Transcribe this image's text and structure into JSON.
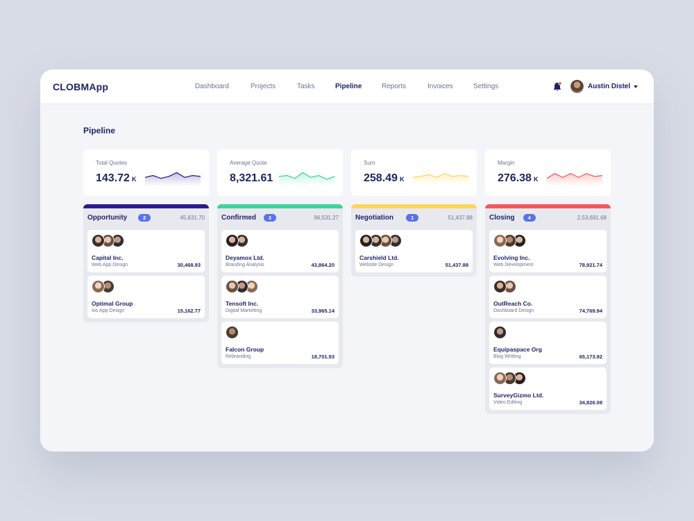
{
  "app": {
    "logo": "CLOBMApp"
  },
  "nav": [
    {
      "label": "Dashboard",
      "active": false
    },
    {
      "label": "Projects",
      "active": false
    },
    {
      "label": "Tasks",
      "active": false
    },
    {
      "label": "Pipeline",
      "active": true
    },
    {
      "label": "Reports",
      "active": false
    },
    {
      "label": "Invoices",
      "active": false
    },
    {
      "label": "Settings",
      "active": false
    }
  ],
  "user": {
    "name": "Austin Distel",
    "bell_icon": "bell-icon",
    "notification_color": "#e8505b"
  },
  "page": {
    "title": "Pipeline"
  },
  "colors": {
    "opportunity": "#2b1e8c",
    "confirmed": "#3dd598",
    "negotiation": "#ffd55a",
    "closing": "#f15a5a",
    "badge": "#5973e8"
  },
  "kpis": [
    {
      "label": "Total Quotes",
      "value": "143.72",
      "unit": "K",
      "color": "#2b1e8c",
      "trend": [
        0.55,
        0.45,
        0.6,
        0.5,
        0.3,
        0.55,
        0.45,
        0.5
      ]
    },
    {
      "label": "Average Quote",
      "value": "8,321.61",
      "unit": "",
      "color": "#3dd598",
      "trend": [
        0.5,
        0.45,
        0.6,
        0.3,
        0.55,
        0.45,
        0.65,
        0.5
      ]
    },
    {
      "label": "Sum",
      "value": "258.49",
      "unit": "K",
      "color": "#ffd55a",
      "trend": [
        0.55,
        0.5,
        0.4,
        0.55,
        0.35,
        0.5,
        0.45,
        0.5
      ]
    },
    {
      "label": "Margin",
      "value": "276.38",
      "unit": "K",
      "color": "#f15a5a",
      "trend": [
        0.6,
        0.35,
        0.55,
        0.35,
        0.55,
        0.35,
        0.5,
        0.45
      ]
    }
  ],
  "columns": [
    {
      "title": "Opportunity",
      "count": "2",
      "total": "45,631.70",
      "color": "#2b1e8c",
      "cards": [
        {
          "name": "Capital Inc.",
          "sub": "Web App Design",
          "amount": "30,468.93",
          "avatars": 3
        },
        {
          "name": "Optimal Group",
          "sub": "Ios App Design",
          "amount": "15,162.77",
          "avatars": 2
        }
      ]
    },
    {
      "title": "Confirmed",
      "count": "3",
      "total": "96,531.27",
      "color": "#3dd598",
      "cards": [
        {
          "name": "Deyamox Ltd.",
          "sub": "Branding Analysis",
          "amount": "43,864.20",
          "avatars": 2
        },
        {
          "name": "Tensoft Inc.",
          "sub": "Digital Marketing",
          "amount": "33,965.14",
          "avatars": 3
        },
        {
          "name": "Falcon Group",
          "sub": "Rebranding",
          "amount": "18,701.93",
          "avatars": 1
        }
      ]
    },
    {
      "title": "Negotiation",
      "count": "1",
      "total": "51,437.88",
      "color": "#ffd55a",
      "cards": [
        {
          "name": "Carshield Ltd.",
          "sub": "Website Design",
          "amount": "51,437.88",
          "avatars": 4
        }
      ]
    },
    {
      "title": "Closing",
      "count": "4",
      "total": "2,53,691.68",
      "color": "#f15a5a",
      "cards": [
        {
          "name": "Evolving Inc.",
          "sub": "Web Development",
          "amount": "78,921.74",
          "avatars": 3
        },
        {
          "name": "OutReach Co.",
          "sub": "Dashboard Design",
          "amount": "74,769.94",
          "avatars": 2
        },
        {
          "name": "Equipaspace Org",
          "sub": "Blog Writting",
          "amount": "65,173.92",
          "avatars": 1
        },
        {
          "name": "SurveyGizmo Ltd.",
          "sub": "Video Editing",
          "amount": "34,826.08",
          "avatars": 3
        }
      ]
    }
  ]
}
